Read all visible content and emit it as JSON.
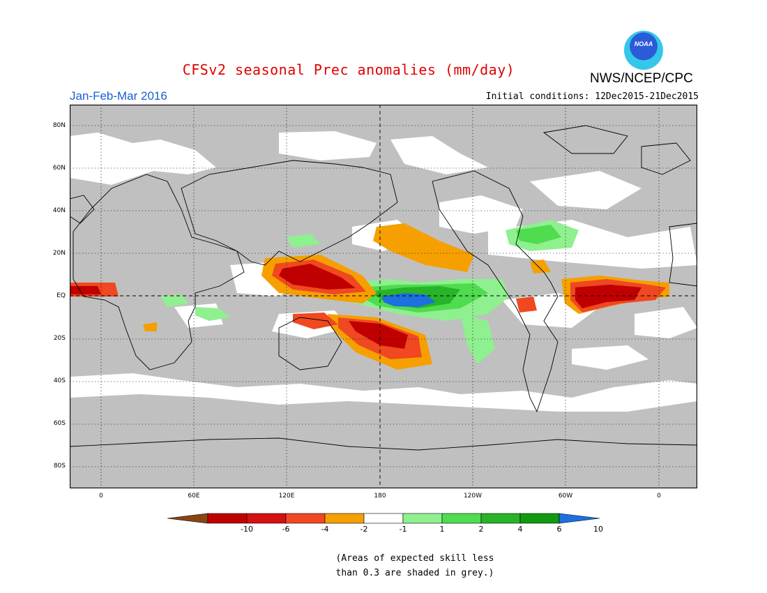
{
  "title": "CFSv2 seasonal Prec anomalies (mm/day)",
  "organization": "NWS/NCEP/CPC",
  "logo_text": "NOAA",
  "season": "Jan-Feb-Mar 2016",
  "initial_conditions": "Initial conditions: 12Dec2015-21Dec2015",
  "lat_labels": [
    "80N",
    "60N",
    "40N",
    "20N",
    "EQ",
    "20S",
    "40S",
    "60S",
    "80S"
  ],
  "lon_labels": [
    "0",
    "60E",
    "120E",
    "180",
    "120W",
    "60W",
    "0"
  ],
  "colorbar": {
    "labels": [
      "-10",
      "-6",
      "-4",
      "-2",
      "-1",
      "1",
      "2",
      "4",
      "6",
      "10"
    ],
    "colors": [
      "#8b4513",
      "#c00000",
      "#d41010",
      "#f04820",
      "#f5a000",
      "#ffffff",
      "#8ff08f",
      "#4fdc4f",
      "#28b428",
      "#109a10",
      "#1e6fe0"
    ]
  },
  "footnote": {
    "line1": "(Areas of expected skill less",
    "line2": "than 0.3 are shaded in grey.)"
  },
  "colors": {
    "grey_mask": "#c0c0c0",
    "title": "#e00000",
    "season": "#1a5fd0"
  }
}
